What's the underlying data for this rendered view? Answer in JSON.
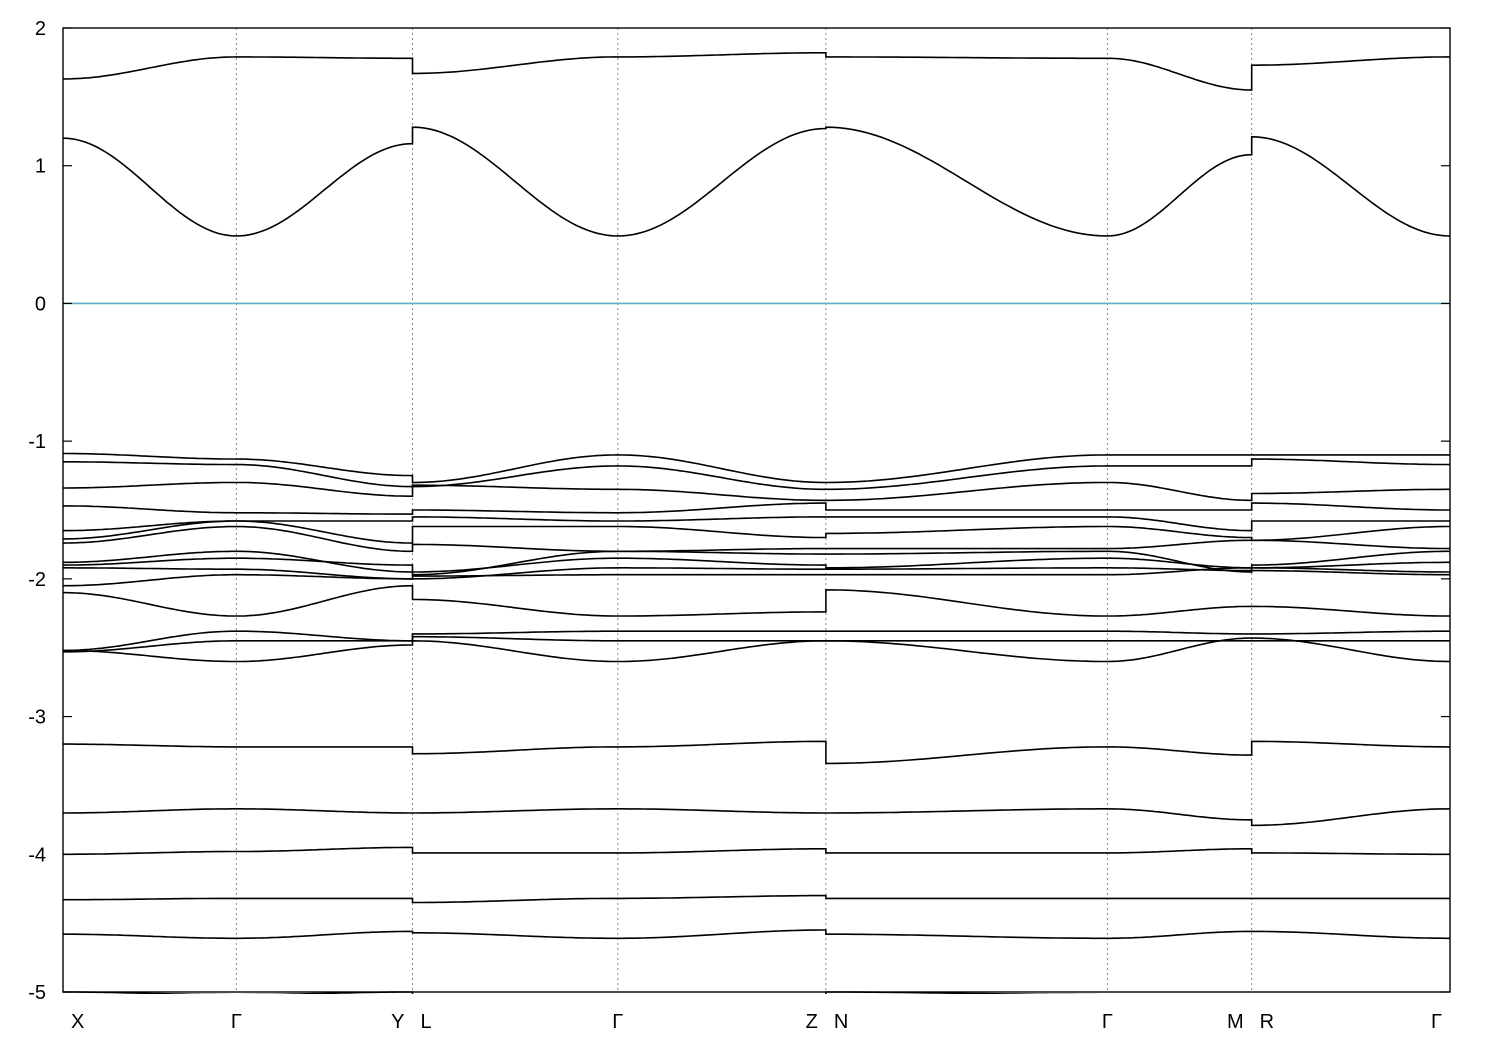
{
  "chart_data": {
    "type": "line",
    "title": "",
    "xlabel": "",
    "ylabel": "",
    "ylim": [
      -5,
      2
    ],
    "xlim": [
      0,
      1
    ],
    "yticks": [
      2,
      1,
      0,
      -1,
      -2,
      -3,
      -4,
      -5
    ],
    "grid": "vertical dotted at high-symmetry points",
    "fermi_level": {
      "y": 0,
      "color": "#5aaec8"
    },
    "band_color": "#000000",
    "segments": [
      {
        "start": "X",
        "mid": "Γ",
        "end": "Y",
        "xs": 0.0,
        "xm": 0.125,
        "xe": 0.252
      },
      {
        "start": "L",
        "mid": "Γ",
        "end": "Z",
        "xs": 0.252,
        "xm": 0.4,
        "xe": 0.55
      },
      {
        "start": "N",
        "mid": "Γ",
        "end": "M",
        "xs": 0.55,
        "xm": 0.753,
        "xe": 0.857
      },
      {
        "start": "R",
        "mid": "Γ",
        "end": "",
        "xs": 0.857,
        "xm": 1.0,
        "xe": 1.0
      }
    ],
    "high_symmetry_points": [
      {
        "label": "X",
        "x": 0.0,
        "anchor": "start"
      },
      {
        "label": "Γ",
        "x": 0.125,
        "anchor": "middle"
      },
      {
        "label": "Y",
        "x": 0.252,
        "anchor": "end"
      },
      {
        "label": "L",
        "x": 0.252,
        "anchor": "start"
      },
      {
        "label": "Γ",
        "x": 0.4,
        "anchor": "middle"
      },
      {
        "label": "Z",
        "x": 0.55,
        "anchor": "end"
      },
      {
        "label": "N",
        "x": 0.55,
        "anchor": "start"
      },
      {
        "label": "Γ",
        "x": 0.753,
        "anchor": "middle"
      },
      {
        "label": "M",
        "x": 0.857,
        "anchor": "end"
      },
      {
        "label": "R",
        "x": 0.857,
        "anchor": "start"
      },
      {
        "label": "Γ",
        "x": 1.0,
        "anchor": "end"
      }
    ],
    "bands": [
      {
        "segs": [
          [
            1.63,
            1.79,
            1.78
          ],
          [
            1.67,
            1.79,
            1.82
          ],
          [
            1.79,
            1.78,
            1.55
          ],
          [
            1.73,
            1.79,
            1.79
          ]
        ]
      },
      {
        "segs": [
          [
            1.2,
            0.49,
            1.16
          ],
          [
            1.28,
            0.49,
            1.27
          ],
          [
            1.28,
            0.49,
            1.08
          ],
          [
            1.21,
            0.49,
            0.49
          ]
        ]
      },
      {
        "segs": [
          [
            -1.09,
            -1.13,
            -1.25
          ],
          [
            -1.3,
            -1.1,
            -1.3
          ],
          [
            -1.3,
            -1.1,
            -1.1
          ],
          [
            -1.1,
            -1.1,
            -1.1
          ]
        ]
      },
      {
        "segs": [
          [
            -1.15,
            -1.17,
            -1.33
          ],
          [
            -1.33,
            -1.18,
            -1.35
          ],
          [
            -1.35,
            -1.18,
            -1.18
          ],
          [
            -1.13,
            -1.17,
            -1.17
          ]
        ]
      },
      {
        "segs": [
          [
            -1.34,
            -1.3,
            -1.4
          ],
          [
            -1.32,
            -1.35,
            -1.43
          ],
          [
            -1.43,
            -1.3,
            -1.43
          ],
          [
            -1.38,
            -1.35,
            -1.3
          ]
        ]
      },
      {
        "segs": [
          [
            -1.47,
            -1.52,
            -1.53
          ],
          [
            -1.5,
            -1.52,
            -1.45
          ],
          [
            -1.5,
            -1.5,
            -1.5
          ],
          [
            -1.45,
            -1.5,
            -1.53
          ]
        ]
      },
      {
        "segs": [
          [
            -1.65,
            -1.58,
            -1.58
          ],
          [
            -1.55,
            -1.58,
            -1.55
          ],
          [
            -1.55,
            -1.55,
            -1.65
          ],
          [
            -1.58,
            -1.58,
            -1.58
          ]
        ]
      },
      {
        "segs": [
          [
            -1.71,
            -1.58,
            -1.74
          ],
          [
            -1.62,
            -1.62,
            -1.7
          ],
          [
            -1.67,
            -1.62,
            -1.7
          ],
          [
            -1.72,
            -1.62,
            -1.58
          ]
        ]
      },
      {
        "segs": [
          [
            -1.74,
            -1.62,
            -1.8
          ],
          [
            -1.75,
            -1.8,
            -1.78
          ],
          [
            -1.78,
            -1.78,
            -1.72
          ],
          [
            -1.72,
            -1.78,
            -1.78
          ]
        ]
      },
      {
        "segs": [
          [
            -1.88,
            -1.8,
            -1.95
          ],
          [
            -1.97,
            -1.8,
            -1.82
          ],
          [
            -1.82,
            -1.8,
            -1.95
          ],
          [
            -1.9,
            -1.8,
            -1.8
          ]
        ]
      },
      {
        "segs": [
          [
            -1.9,
            -1.85,
            -1.9
          ],
          [
            -1.95,
            -1.85,
            -1.9
          ],
          [
            -1.92,
            -1.85,
            -1.92
          ],
          [
            -1.92,
            -1.88,
            -1.93
          ]
        ]
      },
      {
        "segs": [
          [
            -1.92,
            -1.93,
            -2.0
          ],
          [
            -2.0,
            -1.92,
            -1.93
          ],
          [
            -1.93,
            -1.92,
            -1.94
          ],
          [
            -1.92,
            -1.95,
            -1.95
          ]
        ]
      },
      {
        "segs": [
          [
            -2.05,
            -1.97,
            -2.0
          ],
          [
            -1.98,
            -1.97,
            -1.97
          ],
          [
            -1.97,
            -1.97,
            -1.92
          ],
          [
            -1.94,
            -1.97,
            -2.0
          ]
        ]
      },
      {
        "segs": [
          [
            -2.1,
            -2.27,
            -2.05
          ],
          [
            -2.15,
            -2.27,
            -2.24
          ],
          [
            -2.08,
            -2.27,
            -2.2
          ],
          [
            -2.2,
            -2.27,
            -2.27
          ]
        ]
      },
      {
        "segs": [
          [
            -2.52,
            -2.38,
            -2.45
          ],
          [
            -2.4,
            -2.38,
            -2.38
          ],
          [
            -2.38,
            -2.38,
            -2.4
          ],
          [
            -2.4,
            -2.38,
            -2.38
          ]
        ]
      },
      {
        "segs": [
          [
            -2.52,
            -2.6,
            -2.48
          ],
          [
            -2.45,
            -2.6,
            -2.45
          ],
          [
            -2.45,
            -2.6,
            -2.43
          ],
          [
            -2.43,
            -2.6,
            -2.6
          ]
        ]
      },
      {
        "segs": [
          [
            -2.53,
            -2.45,
            -2.45
          ],
          [
            -2.42,
            -2.45,
            -2.45
          ],
          [
            -2.45,
            -2.45,
            -2.45
          ],
          [
            -2.45,
            -2.45,
            -2.45
          ]
        ]
      },
      {
        "segs": [
          [
            -3.2,
            -3.22,
            -3.22
          ],
          [
            -3.27,
            -3.22,
            -3.18
          ],
          [
            -3.34,
            -3.22,
            -3.28
          ],
          [
            -3.18,
            -3.22,
            -3.22
          ]
        ]
      },
      {
        "segs": [
          [
            -3.7,
            -3.67,
            -3.7
          ],
          [
            -3.7,
            -3.67,
            -3.7
          ],
          [
            -3.7,
            -3.67,
            -3.75
          ],
          [
            -3.79,
            -3.67,
            -3.67
          ]
        ]
      },
      {
        "segs": [
          [
            -4.0,
            -3.98,
            -3.95
          ],
          [
            -3.99,
            -3.99,
            -3.96
          ],
          [
            -3.99,
            -3.99,
            -3.96
          ],
          [
            -3.99,
            -4.0,
            -4.0
          ]
        ]
      },
      {
        "segs": [
          [
            -4.33,
            -4.32,
            -4.32
          ],
          [
            -4.35,
            -4.32,
            -4.3
          ],
          [
            -4.32,
            -4.32,
            -4.32
          ],
          [
            -4.32,
            -4.32,
            -4.32
          ]
        ]
      },
      {
        "segs": [
          [
            -4.58,
            -4.61,
            -4.56
          ],
          [
            -4.57,
            -4.61,
            -4.55
          ],
          [
            -4.58,
            -4.61,
            -4.56
          ],
          [
            -4.56,
            -4.61,
            -4.61
          ]
        ]
      },
      {
        "segs": [
          [
            -5.0,
            -5.02,
            -5.0
          ],
          [
            -5.02,
            -5.03,
            -5.02
          ],
          [
            -5.0,
            -5.02,
            -5.02
          ],
          [
            -5.02,
            -5.03,
            -5.03
          ]
        ]
      }
    ]
  }
}
